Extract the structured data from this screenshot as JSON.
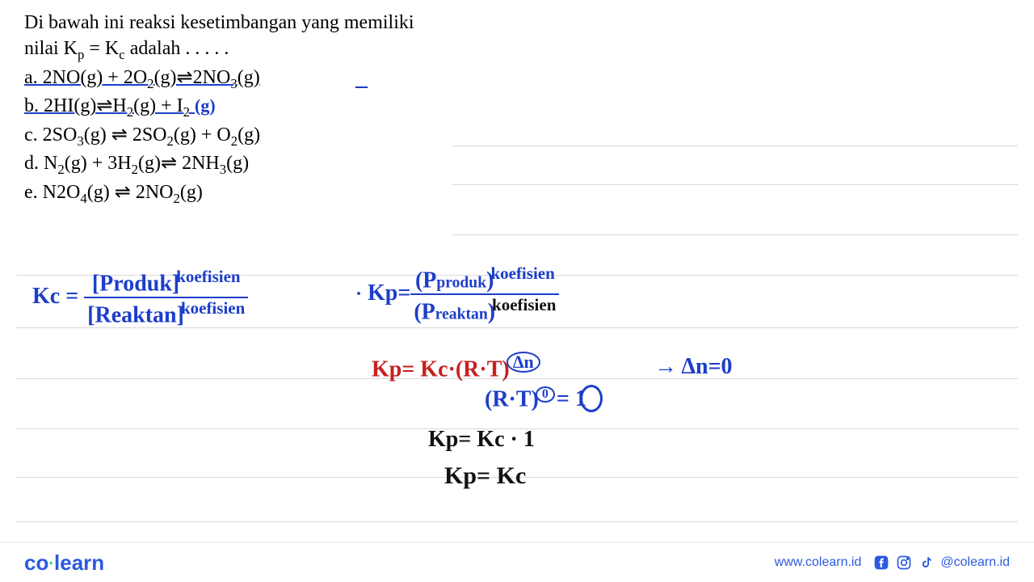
{
  "question": {
    "line1": "Di bawah ini reaksi kesetimbangan yang memiliki",
    "line2_pre": "nilai K",
    "line2_sub1": "p",
    "line2_mid": " = K",
    "line2_sub2": "c",
    "line2_post": " adalah . . . . .",
    "options": {
      "a": {
        "pre": "a.  2NO(g) + 2O",
        "s1": "2",
        "m1": "(g)⇌2NO",
        "s2": "3",
        "post": "(g)"
      },
      "b": {
        "pre": "b.  2HI(g)⇌H",
        "s1": "2",
        "m1": "(g) + I",
        "s2": "2",
        "post": ""
      },
      "c": {
        "pre": "c.  2SO",
        "s1": "3",
        "m1": "(g) ⇌ 2SO",
        "s2": "2",
        "m2": "(g) + O",
        "s3": "2",
        "post": "(g)"
      },
      "d": {
        "pre": "d.  N",
        "s1": "2",
        "m1": "(g) + 3H",
        "s2": "2",
        "m2": "(g)⇌ 2NH",
        "s3": "3",
        "post": "(g)"
      },
      "e": {
        "pre": "e.  N2O",
        "s1": "4",
        "m1": "(g) ⇌ 2NO",
        "s2": "2",
        "post": "(g)"
      }
    }
  },
  "annotations": {
    "dash_a": "–",
    "b_gas": "(g)"
  },
  "work": {
    "kc_label": "Kc =",
    "kc_num": "[Produk]",
    "kc_den": "[Reaktan]",
    "koef": "koefisien",
    "kp_label": "Kp=",
    "kp_num": "(P",
    "kp_num2": "produk",
    "kp_num3": ")",
    "kp_den": "(P",
    "kp_den2": "reaktan",
    "kp_den3": ")",
    "eq1": "Kp= Kc·(R·T)",
    "eq1_exp": "Δn",
    "arrow": "→ Δn=0",
    "eq2a": "(R·T)",
    "eq2b": "0",
    "eq2c": "= 1",
    "eq3": "Kp= Kc · 1",
    "eq4": "Kp= Kc"
  },
  "footer": {
    "logo1": "co",
    "logo2": "learn",
    "url": "www.colearn.id",
    "handle": "@colearn.id"
  },
  "style": {
    "blue": "#1c3ec9",
    "red": "#c62020",
    "ruled": "#d9d9d9",
    "brand_blue": "#2b5adf"
  },
  "ruled_line_tops": [
    180,
    228,
    290,
    340,
    405,
    468,
    530,
    590,
    645
  ]
}
